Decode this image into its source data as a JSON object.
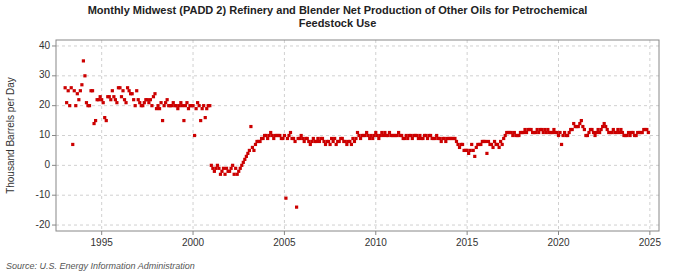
{
  "chart_data": {
    "type": "scatter",
    "title": "Monthly Midwest (PADD 2) Refinery and Blender Net Production of Other Oils for Petrochemical\nFeedstock Use",
    "ylabel": "Thousand Barrels per Day",
    "annotations": [
      "Source: U.S. Energy Information Administration"
    ],
    "color": "#cc0000",
    "marker": "square",
    "grid": true,
    "xlim": [
      1992.5,
      2025.5
    ],
    "ylim": [
      -22,
      42
    ],
    "yticks": [
      -20,
      -10,
      0,
      10,
      20,
      30,
      40
    ],
    "xticks": [
      1995,
      2000,
      2005,
      2010,
      2015,
      2020,
      2025
    ],
    "x": [
      1993.0,
      1993.083,
      1993.167,
      1993.25,
      1993.333,
      1993.417,
      1993.5,
      1993.583,
      1993.667,
      1993.75,
      1993.833,
      1993.917,
      1994.0,
      1994.083,
      1994.167,
      1994.25,
      1994.333,
      1994.417,
      1994.5,
      1994.583,
      1994.667,
      1994.75,
      1994.833,
      1994.917,
      1995.0,
      1995.083,
      1995.167,
      1995.25,
      1995.333,
      1995.417,
      1995.5,
      1995.583,
      1995.667,
      1995.75,
      1995.833,
      1995.917,
      1996.0,
      1996.083,
      1996.167,
      1996.25,
      1996.333,
      1996.417,
      1996.5,
      1996.583,
      1996.667,
      1996.75,
      1996.833,
      1996.917,
      1997.0,
      1997.083,
      1997.167,
      1997.25,
      1997.333,
      1997.417,
      1997.5,
      1997.583,
      1997.667,
      1997.75,
      1997.833,
      1997.917,
      1998.0,
      1998.083,
      1998.167,
      1998.25,
      1998.333,
      1998.417,
      1998.5,
      1998.583,
      1998.667,
      1998.75,
      1998.833,
      1998.917,
      1999.0,
      1999.083,
      1999.167,
      1999.25,
      1999.333,
      1999.417,
      1999.5,
      1999.583,
      1999.667,
      1999.75,
      1999.833,
      1999.917,
      2000.0,
      2000.083,
      2000.167,
      2000.25,
      2000.333,
      2000.417,
      2000.5,
      2000.583,
      2000.667,
      2000.75,
      2000.833,
      2000.917,
      2001.0,
      2001.083,
      2001.167,
      2001.25,
      2001.333,
      2001.417,
      2001.5,
      2001.583,
      2001.667,
      2001.75,
      2001.833,
      2001.917,
      2002.0,
      2002.083,
      2002.167,
      2002.25,
      2002.333,
      2002.417,
      2002.5,
      2002.583,
      2002.667,
      2002.75,
      2002.833,
      2002.917,
      2003.0,
      2003.083,
      2003.167,
      2003.25,
      2003.333,
      2003.417,
      2003.5,
      2003.583,
      2003.667,
      2003.75,
      2003.833,
      2003.917,
      2004.0,
      2004.083,
      2004.167,
      2004.25,
      2004.333,
      2004.417,
      2004.5,
      2004.583,
      2004.667,
      2004.75,
      2004.833,
      2004.917,
      2005.0,
      2005.083,
      2005.167,
      2005.25,
      2005.333,
      2005.417,
      2005.5,
      2005.583,
      2005.667,
      2005.75,
      2005.833,
      2005.917,
      2006.0,
      2006.083,
      2006.167,
      2006.25,
      2006.333,
      2006.417,
      2006.5,
      2006.583,
      2006.667,
      2006.75,
      2006.833,
      2006.917,
      2007.0,
      2007.083,
      2007.167,
      2007.25,
      2007.333,
      2007.417,
      2007.5,
      2007.583,
      2007.667,
      2007.75,
      2007.833,
      2007.917,
      2008.0,
      2008.083,
      2008.167,
      2008.25,
      2008.333,
      2008.417,
      2008.5,
      2008.583,
      2008.667,
      2008.75,
      2008.833,
      2008.917,
      2009.0,
      2009.083,
      2009.167,
      2009.25,
      2009.333,
      2009.417,
      2009.5,
      2009.583,
      2009.667,
      2009.75,
      2009.833,
      2009.917,
      2010.0,
      2010.083,
      2010.167,
      2010.25,
      2010.333,
      2010.417,
      2010.5,
      2010.583,
      2010.667,
      2010.75,
      2010.833,
      2010.917,
      2011.0,
      2011.083,
      2011.167,
      2011.25,
      2011.333,
      2011.417,
      2011.5,
      2011.583,
      2011.667,
      2011.75,
      2011.833,
      2011.917,
      2012.0,
      2012.083,
      2012.167,
      2012.25,
      2012.333,
      2012.417,
      2012.5,
      2012.583,
      2012.667,
      2012.75,
      2012.833,
      2012.917,
      2013.0,
      2013.083,
      2013.167,
      2013.25,
      2013.333,
      2013.417,
      2013.5,
      2013.583,
      2013.667,
      2013.75,
      2013.833,
      2013.917,
      2014.0,
      2014.083,
      2014.167,
      2014.25,
      2014.333,
      2014.417,
      2014.5,
      2014.583,
      2014.667,
      2014.75,
      2014.833,
      2014.917,
      2015.0,
      2015.083,
      2015.167,
      2015.25,
      2015.333,
      2015.417,
      2015.5,
      2015.583,
      2015.667,
      2015.75,
      2015.833,
      2015.917,
      2016.0,
      2016.083,
      2016.167,
      2016.25,
      2016.333,
      2016.417,
      2016.5,
      2016.583,
      2016.667,
      2016.75,
      2016.833,
      2016.917,
      2017.0,
      2017.083,
      2017.167,
      2017.25,
      2017.333,
      2017.417,
      2017.5,
      2017.583,
      2017.667,
      2017.75,
      2017.833,
      2017.917,
      2018.0,
      2018.083,
      2018.167,
      2018.25,
      2018.333,
      2018.417,
      2018.5,
      2018.583,
      2018.667,
      2018.75,
      2018.833,
      2018.917,
      2019.0,
      2019.083,
      2019.167,
      2019.25,
      2019.333,
      2019.417,
      2019.5,
      2019.583,
      2019.667,
      2019.75,
      2019.833,
      2019.917,
      2020.0,
      2020.083,
      2020.167,
      2020.25,
      2020.333,
      2020.417,
      2020.5,
      2020.583,
      2020.667,
      2020.75,
      2020.833,
      2020.917,
      2021.0,
      2021.083,
      2021.167,
      2021.25,
      2021.333,
      2021.417,
      2021.5,
      2021.583,
      2021.667,
      2021.75,
      2021.833,
      2021.917,
      2022.0,
      2022.083,
      2022.167,
      2022.25,
      2022.333,
      2022.417,
      2022.5,
      2022.583,
      2022.667,
      2022.75,
      2022.833,
      2022.917,
      2023.0,
      2023.083,
      2023.167,
      2023.25,
      2023.333,
      2023.417,
      2023.5,
      2023.583,
      2023.667,
      2023.75,
      2023.833,
      2023.917,
      2024.0,
      2024.083,
      2024.167,
      2024.25,
      2024.333,
      2024.417,
      2024.5,
      2024.583,
      2024.667,
      2024.75,
      2024.833,
      2024.917
    ],
    "values": [
      26,
      21,
      25,
      20,
      26,
      7,
      25,
      20,
      24,
      22,
      25,
      27,
      35,
      30,
      21,
      20,
      20,
      25,
      25,
      14,
      15,
      22,
      22,
      23,
      22,
      21,
      16,
      15,
      23,
      23,
      22,
      25,
      23,
      22,
      21,
      26,
      26,
      23,
      25,
      22,
      21,
      26,
      25,
      24,
      24,
      22,
      20,
      25,
      22,
      21,
      20,
      20,
      21,
      22,
      22,
      21,
      22,
      20,
      23,
      24,
      19,
      20,
      19,
      21,
      15,
      20,
      21,
      22,
      20,
      20,
      20,
      21,
      20,
      20,
      19,
      20,
      21,
      20,
      15,
      20,
      21,
      19,
      20,
      20,
      20,
      10,
      19,
      21,
      20,
      15,
      19,
      20,
      16,
      19,
      20,
      20,
      0,
      -1,
      -2,
      -1,
      0,
      -1,
      -3,
      -2,
      -1,
      -3,
      -1,
      -2,
      -2,
      -1,
      0,
      -3,
      -1,
      -3,
      -2,
      -1,
      0,
      1,
      2,
      3,
      4,
      5,
      13,
      6,
      5,
      7,
      8,
      8,
      8,
      9,
      9,
      10,
      10,
      9,
      10,
      11,
      10,
      9,
      10,
      10,
      10,
      10,
      9,
      9,
      10,
      -11,
      9,
      10,
      11,
      9,
      9,
      8,
      -14,
      9,
      9,
      10,
      9,
      8,
      9,
      9,
      8,
      7,
      8,
      9,
      8,
      8,
      9,
      8,
      9,
      9,
      8,
      7,
      8,
      8,
      7,
      9,
      8,
      9,
      7,
      8,
      8,
      9,
      9,
      8,
      8,
      7,
      8,
      8,
      7,
      9,
      8,
      9,
      11,
      10,
      9,
      10,
      10,
      10,
      11,
      10,
      9,
      10,
      9,
      10,
      11,
      10,
      9,
      10,
      11,
      10,
      11,
      10,
      10,
      11,
      10,
      10,
      10,
      10,
      10,
      11,
      10,
      10,
      9,
      9,
      10,
      9,
      10,
      10,
      9,
      10,
      10,
      10,
      9,
      10,
      9,
      9,
      10,
      10,
      9,
      10,
      10,
      9,
      9,
      9,
      10,
      9,
      9,
      8,
      9,
      9,
      8,
      9,
      9,
      9,
      9,
      9,
      9,
      8,
      7,
      6,
      7,
      7,
      5,
      5,
      5,
      4,
      5,
      7,
      5,
      3,
      6,
      7,
      7,
      7,
      8,
      8,
      8,
      4,
      8,
      7,
      7,
      6,
      8,
      7,
      7,
      6,
      8,
      7,
      9,
      10,
      11,
      11,
      11,
      11,
      10,
      11,
      10,
      10,
      10,
      11,
      11,
      11,
      12,
      11,
      12,
      12,
      12,
      11,
      11,
      11,
      12,
      11,
      12,
      12,
      11,
      12,
      11,
      12,
      11,
      11,
      11,
      12,
      11,
      11,
      10,
      11,
      7,
      10,
      11,
      10,
      10,
      11,
      12,
      12,
      14,
      13,
      13,
      13,
      14,
      15,
      13,
      12,
      10,
      10,
      11,
      12,
      12,
      11,
      10,
      11,
      12,
      11,
      12,
      13,
      14,
      13,
      12,
      11,
      11,
      11,
      12,
      11,
      11,
      12,
      11,
      12,
      11,
      10,
      10,
      10,
      11,
      10,
      11,
      11,
      10,
      10,
      11,
      11,
      11,
      11,
      12,
      12,
      12,
      11
    ]
  }
}
